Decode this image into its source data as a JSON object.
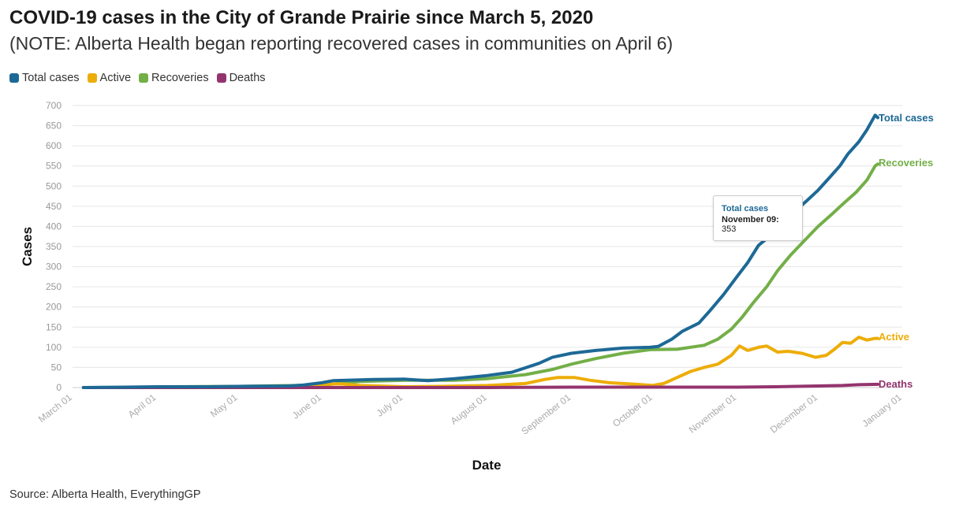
{
  "header": {
    "title": "COVID-19 cases in the City of Grande Prairie since March 5, 2020",
    "subtitle": "(NOTE: Alberta Health began reporting recovered cases in communities on April 6)"
  },
  "legend": [
    {
      "label": "Total cases",
      "color": "#1d6996"
    },
    {
      "label": "Active",
      "color": "#edad08"
    },
    {
      "label": "Recoveries",
      "color": "#73af48"
    },
    {
      "label": "Deaths",
      "color": "#94346e"
    }
  ],
  "tooltip": {
    "series": "Total cases",
    "date": "November 09",
    "value": "353"
  },
  "footer": {
    "source": "Source: Alberta Health, EverythingGP"
  },
  "chart_data": {
    "type": "line",
    "xlabel": "Date",
    "ylabel": "Cases",
    "ylim": [
      0,
      700
    ],
    "y_ticks": [
      0,
      50,
      100,
      150,
      200,
      250,
      300,
      350,
      400,
      450,
      500,
      550,
      600,
      650,
      700
    ],
    "x_ticks": [
      "March 01",
      "April 01",
      "May 01",
      "June 01",
      "July 01",
      "August 01",
      "September 01",
      "October 01",
      "November 01",
      "December 01",
      "January 01"
    ],
    "x_range": [
      "2020-03-01",
      "2021-01-01"
    ],
    "grid": "horizontal",
    "legend_position": "top-left",
    "series": [
      {
        "name": "Total cases",
        "color": "#1d6996",
        "end_label": "Total cases",
        "points": [
          [
            "2020-03-05",
            0
          ],
          [
            "2020-03-20",
            1
          ],
          [
            "2020-04-01",
            2
          ],
          [
            "2020-04-20",
            2
          ],
          [
            "2020-05-01",
            3
          ],
          [
            "2020-05-20",
            4
          ],
          [
            "2020-05-25",
            6
          ],
          [
            "2020-06-01",
            12
          ],
          [
            "2020-06-05",
            17
          ],
          [
            "2020-06-10",
            18
          ],
          [
            "2020-06-20",
            20
          ],
          [
            "2020-07-01",
            21
          ],
          [
            "2020-07-10",
            17
          ],
          [
            "2020-07-20",
            22
          ],
          [
            "2020-08-01",
            30
          ],
          [
            "2020-08-10",
            38
          ],
          [
            "2020-08-20",
            60
          ],
          [
            "2020-08-25",
            75
          ],
          [
            "2020-09-01",
            85
          ],
          [
            "2020-09-10",
            92
          ],
          [
            "2020-09-20",
            98
          ],
          [
            "2020-09-30",
            100
          ],
          [
            "2020-10-03",
            102
          ],
          [
            "2020-10-08",
            120
          ],
          [
            "2020-10-12",
            140
          ],
          [
            "2020-10-18",
            160
          ],
          [
            "2020-10-22",
            190
          ],
          [
            "2020-10-27",
            230
          ],
          [
            "2020-11-01",
            275
          ],
          [
            "2020-11-05",
            310
          ],
          [
            "2020-11-09",
            353
          ],
          [
            "2020-11-13",
            375
          ],
          [
            "2020-11-17",
            405
          ],
          [
            "2020-11-22",
            435
          ],
          [
            "2020-11-27",
            465
          ],
          [
            "2020-12-01",
            490
          ],
          [
            "2020-12-05",
            520
          ],
          [
            "2020-12-09",
            550
          ],
          [
            "2020-12-12",
            580
          ],
          [
            "2020-12-16",
            610
          ],
          [
            "2020-12-19",
            640
          ],
          [
            "2020-12-22",
            676
          ],
          [
            "2020-12-23",
            670
          ]
        ]
      },
      {
        "name": "Active",
        "color": "#edad08",
        "end_label": "Active",
        "points": [
          [
            "2020-04-06",
            0
          ],
          [
            "2020-05-01",
            1
          ],
          [
            "2020-05-25",
            3
          ],
          [
            "2020-06-01",
            8
          ],
          [
            "2020-06-08",
            9
          ],
          [
            "2020-06-15",
            5
          ],
          [
            "2020-07-01",
            2
          ],
          [
            "2020-07-15",
            3
          ],
          [
            "2020-08-01",
            5
          ],
          [
            "2020-08-15",
            10
          ],
          [
            "2020-08-22",
            20
          ],
          [
            "2020-08-27",
            25
          ],
          [
            "2020-09-02",
            25
          ],
          [
            "2020-09-08",
            18
          ],
          [
            "2020-09-15",
            12
          ],
          [
            "2020-09-25",
            8
          ],
          [
            "2020-10-01",
            5
          ],
          [
            "2020-10-05",
            10
          ],
          [
            "2020-10-10",
            25
          ],
          [
            "2020-10-15",
            40
          ],
          [
            "2020-10-20",
            50
          ],
          [
            "2020-10-25",
            58
          ],
          [
            "2020-10-30",
            80
          ],
          [
            "2020-11-02",
            103
          ],
          [
            "2020-11-05",
            92
          ],
          [
            "2020-11-09",
            100
          ],
          [
            "2020-11-12",
            103
          ],
          [
            "2020-11-16",
            88
          ],
          [
            "2020-11-20",
            90
          ],
          [
            "2020-11-25",
            85
          ],
          [
            "2020-11-30",
            75
          ],
          [
            "2020-12-04",
            80
          ],
          [
            "2020-12-07",
            95
          ],
          [
            "2020-12-10",
            112
          ],
          [
            "2020-12-13",
            110
          ],
          [
            "2020-12-16",
            125
          ],
          [
            "2020-12-19",
            118
          ],
          [
            "2020-12-22",
            122
          ],
          [
            "2020-12-23",
            122
          ]
        ]
      },
      {
        "name": "Recoveries",
        "color": "#73af48",
        "end_label": "Recoveries",
        "points": [
          [
            "2020-04-06",
            2
          ],
          [
            "2020-05-01",
            3
          ],
          [
            "2020-06-01",
            6
          ],
          [
            "2020-06-15",
            15
          ],
          [
            "2020-07-01",
            18
          ],
          [
            "2020-07-20",
            18
          ],
          [
            "2020-08-01",
            22
          ],
          [
            "2020-08-15",
            32
          ],
          [
            "2020-08-25",
            45
          ],
          [
            "2020-09-01",
            58
          ],
          [
            "2020-09-10",
            72
          ],
          [
            "2020-09-20",
            85
          ],
          [
            "2020-09-30",
            94
          ],
          [
            "2020-10-10",
            95
          ],
          [
            "2020-10-20",
            105
          ],
          [
            "2020-10-25",
            120
          ],
          [
            "2020-10-30",
            145
          ],
          [
            "2020-11-03",
            175
          ],
          [
            "2020-11-07",
            210
          ],
          [
            "2020-11-12",
            250
          ],
          [
            "2020-11-16",
            290
          ],
          [
            "2020-11-21",
            330
          ],
          [
            "2020-11-26",
            365
          ],
          [
            "2020-12-01",
            400
          ],
          [
            "2020-12-06",
            430
          ],
          [
            "2020-12-10",
            455
          ],
          [
            "2020-12-15",
            485
          ],
          [
            "2020-12-19",
            515
          ],
          [
            "2020-12-22",
            550
          ],
          [
            "2020-12-23",
            555
          ]
        ]
      },
      {
        "name": "Deaths",
        "color": "#94346e",
        "end_label": "Deaths",
        "points": [
          [
            "2020-03-05",
            0
          ],
          [
            "2020-06-01",
            0
          ],
          [
            "2020-07-01",
            0
          ],
          [
            "2020-08-01",
            0
          ],
          [
            "2020-09-01",
            1
          ],
          [
            "2020-10-01",
            1
          ],
          [
            "2020-11-01",
            1
          ],
          [
            "2020-11-15",
            2
          ],
          [
            "2020-12-01",
            4
          ],
          [
            "2020-12-10",
            5
          ],
          [
            "2020-12-16",
            7
          ],
          [
            "2020-12-23",
            8
          ]
        ]
      }
    ]
  }
}
